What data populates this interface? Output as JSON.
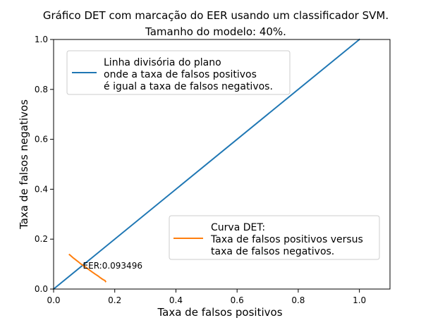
{
  "chart_data": {
    "type": "line",
    "title_lines": [
      "Gráfico DET com marcação do EER usando um classificador SVM.",
      "Tamanho do modelo: 40%."
    ],
    "xlabel": "Taxa de falsos positivos",
    "ylabel": "Taxa de falsos negativos",
    "xlim": [
      0.0,
      1.1
    ],
    "ylim": [
      0.0,
      1.0
    ],
    "xticks": [
      0.0,
      0.2,
      0.4,
      0.6,
      0.8,
      1.0
    ],
    "yticks": [
      0.0,
      0.2,
      0.4,
      0.6,
      0.8,
      1.0
    ],
    "xtick_labels": [
      "0.0",
      "0.2",
      "0.4",
      "0.6",
      "0.8",
      "1.0"
    ],
    "ytick_labels": [
      "0.0",
      "0.2",
      "0.4",
      "0.6",
      "0.8",
      "1.0"
    ],
    "grid": false,
    "series": [
      {
        "legend_lines": [
          "Linha divisória do plano",
          "onde a taxa de falsos positivos",
          "é igual a taxa de falsos negativos."
        ],
        "color": "#1f77b4",
        "x": [
          0.0,
          1.0
        ],
        "y": [
          0.0,
          1.0
        ]
      },
      {
        "legend_lines": [
          "Curva DET:",
          "Taxa de falsos positivos versus",
          "taxa de falsos negativos."
        ],
        "color": "#ff7f0e",
        "x": [
          0.052,
          0.065,
          0.078,
          0.09,
          0.1,
          0.112,
          0.124,
          0.136,
          0.146,
          0.152,
          0.158,
          0.163,
          0.168,
          0.17
        ],
        "y": [
          0.138,
          0.124,
          0.112,
          0.1,
          0.092,
          0.081,
          0.07,
          0.06,
          0.052,
          0.046,
          0.041,
          0.037,
          0.034,
          0.03
        ]
      }
    ],
    "annotation": {
      "text": "EER:0.093496",
      "x": 0.093496,
      "y": 0.093496
    },
    "legend_locations": [
      "upper-left",
      "lower-right"
    ]
  }
}
